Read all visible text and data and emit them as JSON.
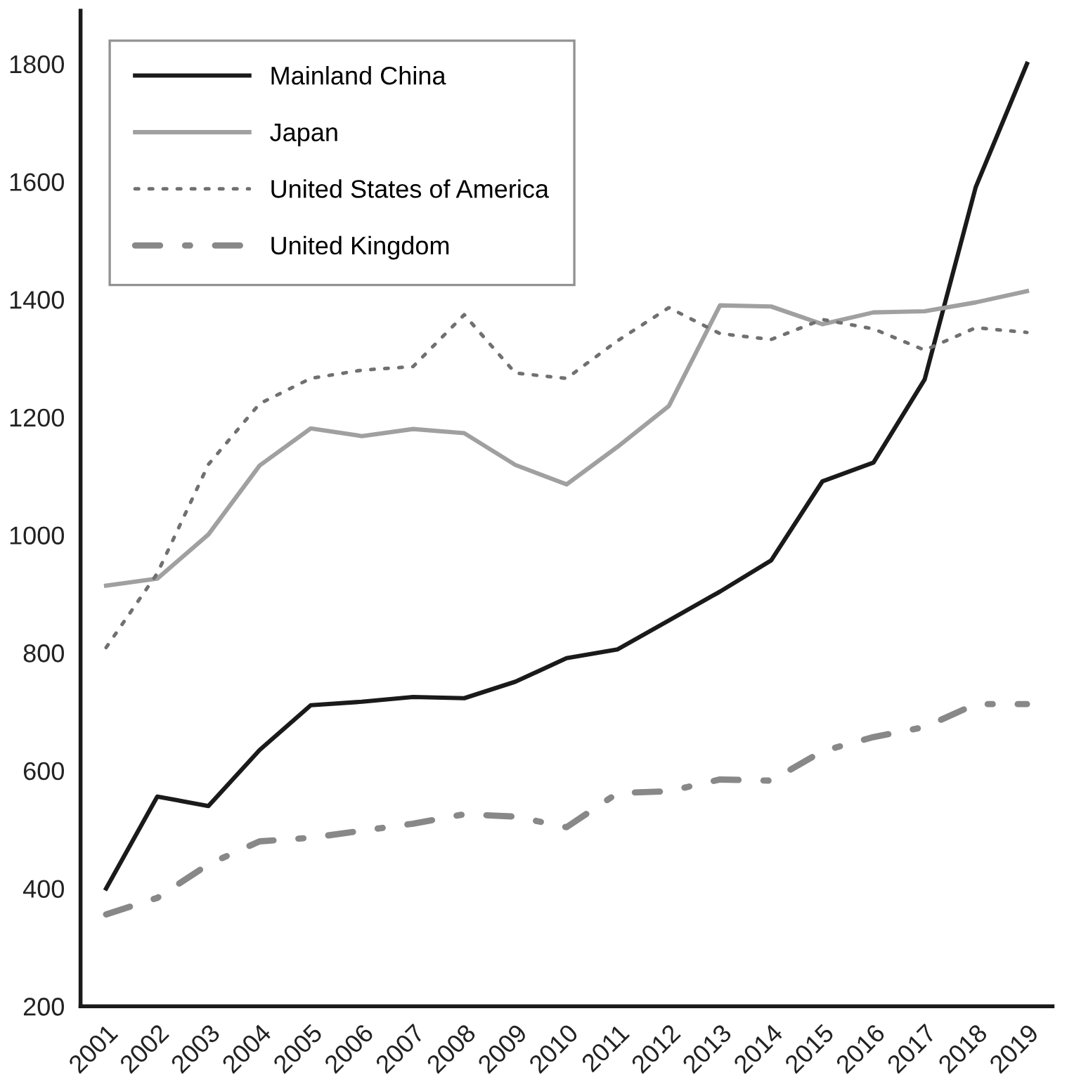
{
  "chart_data": {
    "type": "line",
    "categories": [
      "2001",
      "2002",
      "2003",
      "2004",
      "2005",
      "2006",
      "2007",
      "2008",
      "2009",
      "2010",
      "2011",
      "2012",
      "2013",
      "2014",
      "2015",
      "2016",
      "2017",
      "2018",
      "2019"
    ],
    "series": [
      {
        "name": "Mainland China",
        "color": "#1a1a1a",
        "line_style": "solid",
        "values": [
          400,
          556,
          540,
          635,
          711,
          717,
          725,
          723,
          751,
          791,
          806,
          855,
          904,
          957,
          1091,
          1123,
          1264,
          1591,
          1800
        ]
      },
      {
        "name": "Japan",
        "color": "#a0a0a0",
        "line_style": "solid",
        "values": [
          914,
          926,
          1001,
          1118,
          1181,
          1168,
          1180,
          1173,
          1119,
          1086,
          1150,
          1219,
          1390,
          1388,
          1358,
          1378,
          1380,
          1395,
          1414
        ]
      },
      {
        "name": "United States of America",
        "color": "#707070",
        "line_style": "dotted",
        "values": [
          809,
          935,
          1120,
          1223,
          1266,
          1280,
          1286,
          1374,
          1275,
          1266,
          1330,
          1386,
          1342,
          1332,
          1366,
          1350,
          1314,
          1352,
          1344
        ]
      },
      {
        "name": "United Kingdom",
        "color": "#888888",
        "line_style": "dashdot",
        "values": [
          356,
          384,
          441,
          480,
          486,
          498,
          510,
          526,
          522,
          504,
          562,
          565,
          585,
          583,
          633,
          657,
          674,
          713,
          713
        ]
      }
    ],
    "ylim": [
      200,
      1890
    ],
    "yticks": [
      200,
      400,
      600,
      800,
      1000,
      1200,
      1400,
      1600,
      1800
    ],
    "grid": false,
    "legend": "top left",
    "marker": "none"
  }
}
